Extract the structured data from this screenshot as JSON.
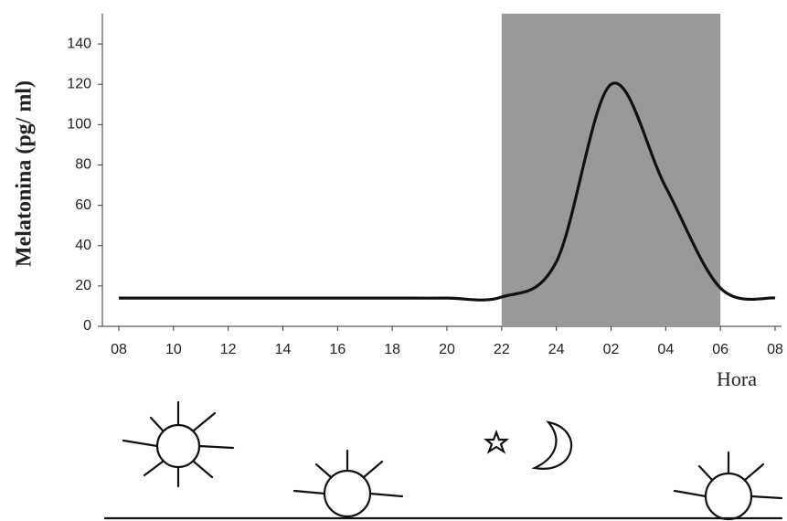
{
  "chart_data": {
    "type": "line",
    "y_label": "Melatonina (pg/ ml)",
    "x_label": "Hora",
    "categories": [
      "08",
      "10",
      "12",
      "14",
      "16",
      "18",
      "20",
      "22",
      "24",
      "02",
      "04",
      "06",
      "08"
    ],
    "values": [
      14,
      14,
      14,
      14,
      14,
      14,
      14,
      14.5,
      32,
      120,
      69,
      19,
      14
    ],
    "color": "#111111",
    "shade": {
      "start": "22",
      "end": "06",
      "color": "#999999"
    },
    "ylim": [
      0,
      155
    ],
    "yticks": [
      0,
      20,
      40,
      60,
      80,
      100,
      120,
      140
    ]
  }
}
